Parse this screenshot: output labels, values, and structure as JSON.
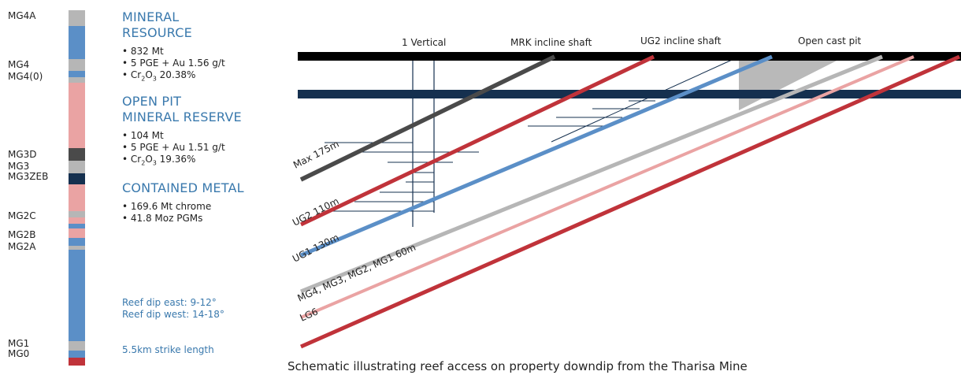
{
  "colors": {
    "accent_blue": "#3a79ad",
    "column_blue": "#5b8fc7",
    "grey": "#b6b6b6",
    "dark_grey": "#4a4a4a",
    "pink": "#eaa3a3",
    "navy": "#15304f",
    "red": "#c0333a",
    "black": "#000000"
  },
  "column": {
    "labels": [
      "MG4A",
      "MG4",
      "MG4(0)",
      "MG3D",
      "MG3",
      "MG3ZEB",
      "MG2C",
      "MG2B",
      "MG2A",
      "MG1",
      "MG0"
    ]
  },
  "info": {
    "resource": {
      "title_line1": "MINERAL",
      "title_line2": "RESOURCE",
      "bullet1": "• 832 Mt",
      "bullet2": "• 5 PGE + Au 1.56 g/t",
      "bullet3_prefix": "• Cr",
      "bullet3_sub1": "2",
      "bullet3_mid": "O",
      "bullet3_sub2": "3",
      "bullet3_value": " 20.38%"
    },
    "reserve": {
      "title_line1": "OPEN PIT",
      "title_line2": "MINERAL RESERVE",
      "bullet1": "• 104 Mt",
      "bullet2": "• 5 PGE + Au 1.51 g/t",
      "bullet3_prefix": "• Cr",
      "bullet3_sub1": "2",
      "bullet3_mid": "O",
      "bullet3_sub2": "3",
      "bullet3_value": " 19.36%"
    },
    "metal": {
      "title": "CONTAINED METAL",
      "bullet1": "• 169.6 Mt chrome",
      "bullet2": "• 41.8 Moz PGMs"
    },
    "dip_east": "Reef dip east: 9-12°",
    "dip_west": "Reef dip west: 14-18°",
    "strike": "5.5km strike length"
  },
  "diagram": {
    "top_labels": {
      "vertical": "1 Vertical",
      "mrk": "MRK incline shaft",
      "ug2": "UG2 incline shaft",
      "pit": "Open cast pit"
    },
    "reefs": {
      "max": "Max 175m",
      "ug2": "UG2 110m",
      "ug1": "UG1 130m",
      "mg": "MG4, MG3, MG2, MG1 60m",
      "lg6": "LG6"
    },
    "caption": "Schematic illustrating reef access on property downdip from the Tharisa Mine"
  }
}
